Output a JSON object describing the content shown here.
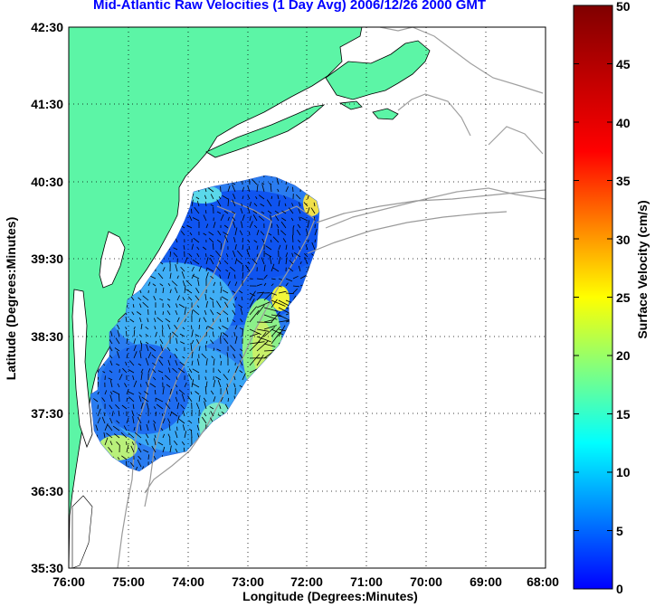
{
  "title": "Mid-Atlantic Raw Velocities (1 Day Avg) 2006/12/26 2000 GMT",
  "xlabel": "Longitude (Degrees:Minutes)",
  "ylabel": "Latitude (Degrees:Minutes)",
  "colorbar": {
    "label": "Surface Velocity (cm/s)",
    "ticks": [
      "0",
      "5",
      "10",
      "15",
      "20",
      "25",
      "30",
      "35",
      "40",
      "45",
      "50"
    ],
    "range": [
      0,
      50
    ],
    "colormap": "jet"
  },
  "map": {
    "lon_ticks": [
      "76:00",
      "75:00",
      "74:00",
      "73:00",
      "72:00",
      "71:00",
      "70:00",
      "69:00",
      "68:00"
    ],
    "lat_ticks": [
      "42:30",
      "41:30",
      "40:30",
      "39:30",
      "38:30",
      "37:30",
      "36:30",
      "35:30"
    ],
    "lon_range": [
      "76:00 W",
      "68:00 W"
    ],
    "lat_range": [
      "35:30 N",
      "42:30 N"
    ],
    "grid": "dotted",
    "land_color": "#5cf5a6",
    "ocean_color": "#ffffff",
    "bathymetry_color": "#999999"
  }
}
